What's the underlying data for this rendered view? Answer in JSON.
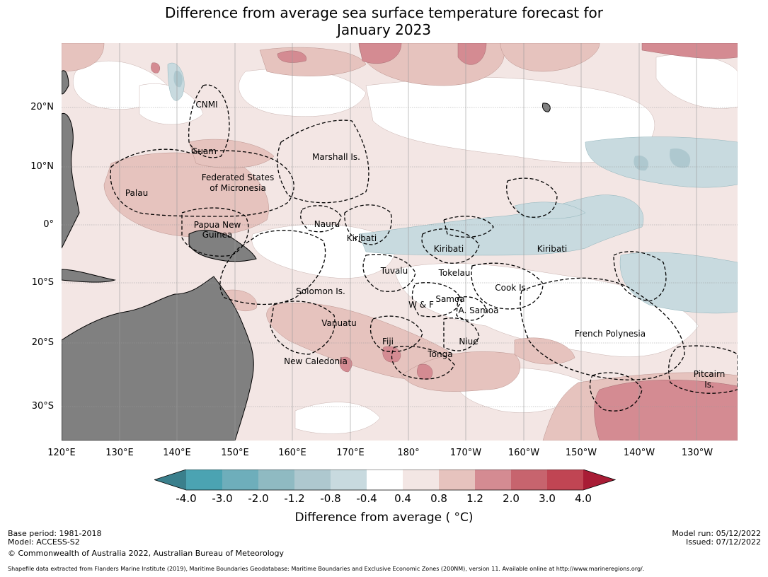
{
  "title_line1": "Difference from average sea surface temperature forecast for",
  "title_line2": "January 2023",
  "lat_labels": [
    "20°N",
    "10°N",
    "0°",
    "10°S",
    "20°S",
    "30°S"
  ],
  "lon_labels": [
    "120°E",
    "130°E",
    "140°E",
    "150°E",
    "160°E",
    "170°E",
    "180°",
    "170°W",
    "160°W",
    "150°W",
    "140°W",
    "130°W"
  ],
  "regions": [
    "CNMI",
    "Guam",
    "Marshall Is.",
    "Federated States",
    "of Micronesia",
    "Palau",
    "Papua New",
    "Guinea",
    "Nauru",
    "Kiribati",
    "Kiribati",
    "Kiribati",
    "Tuvalu",
    "Tokelau",
    "Solomon Is.",
    "Cook Is.",
    "Samoa",
    "W & F",
    "A. Samoa",
    "Vanuatu",
    "Fiji",
    "Niue",
    "Tonga",
    "French Polynesia",
    "New Caledonia",
    "Pitcairn",
    "Is."
  ],
  "colorbar": {
    "ticks": [
      "-4.0",
      "-3.0",
      "-2.0",
      "-1.2",
      "-0.8",
      "-0.4",
      "0.4",
      "0.8",
      "1.2",
      "2.0",
      "3.0",
      "4.0"
    ],
    "colors": [
      "#3a7f8c",
      "#4ba3b2",
      "#6eaebb",
      "#8fbac2",
      "#aec8cf",
      "#c8dadf",
      "#ffffff",
      "#f3e6e4",
      "#e6c3be",
      "#d48b92",
      "#c7646e",
      "#c04553",
      "#a81c35"
    ],
    "label": "Difference from average ( °C)"
  },
  "footer": {
    "base_period": "Base period: 1981-2018",
    "model": "Model: ACCESS-S2",
    "copyright": "© Commonwealth of Australia 2022, Australian Bureau of Meteorology",
    "model_run": "Model run: 05/12/2022",
    "issued": "Issued: 07/12/2022",
    "shapefile": "Shapefile data extracted from Flanders Marine Institute (2019), Maritime Boundaries Geodatabase: Maritime Boundaries and Exclusive Economic Zones (200NM), version 11. Available online at http://www.marineregions.org/."
  }
}
